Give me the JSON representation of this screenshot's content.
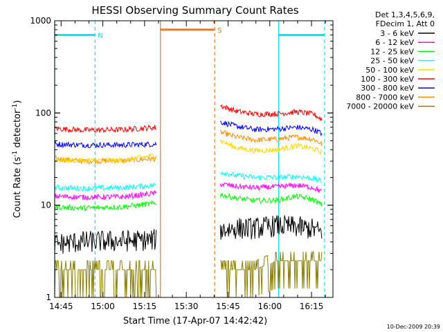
{
  "chart_data": {
    "type": "line",
    "title": "HESSI Observing Summary Count Rates",
    "xlabel": "Start Time (17-Apr-07 14:42:42)",
    "ylabel_prefix": "Count Rate (s",
    "ylabel_mid": " detector",
    "ylabel_suffix": ")",
    "ylabel_sup": "-1",
    "y_scale": "log",
    "ylim": [
      1,
      1000
    ],
    "xlim_minutes": [
      0,
      100
    ],
    "x_ticks": [
      {
        "label": "14:45",
        "value": 2.3
      },
      {
        "label": "15:00",
        "value": 17.3
      },
      {
        "label": "15:15",
        "value": 32.3
      },
      {
        "label": "15:30",
        "value": 47.3
      },
      {
        "label": "15:45",
        "value": 62.3
      },
      {
        "label": "16:00",
        "value": 77.3
      },
      {
        "label": "16:15",
        "value": 92.3
      }
    ],
    "y_ticks": [
      {
        "label": "1",
        "value": 1
      },
      {
        "label": "10",
        "value": 10
      },
      {
        "label": "100",
        "value": 100
      },
      {
        "label": "1000",
        "value": 1000
      }
    ],
    "legend_header": [
      "Det 1,3,4,5,6,9,",
      "FDecim 1, Att 0"
    ],
    "legend_position": "right",
    "series": [
      {
        "name": "3 - 6 keV",
        "color": "#000000",
        "seg1": [
          3.8,
          4.0,
          4.1,
          4.2
        ],
        "seg2": [
          5.4,
          5.6,
          5.6,
          6.0,
          5.8,
          5.5,
          5.0
        ]
      },
      {
        "name": "6 - 12 keV",
        "color": "#ff00ff",
        "seg1": [
          12.5,
          12.2,
          12.3,
          13.5
        ],
        "seg2": [
          17.0,
          16.0,
          15.5,
          15.8,
          16.5,
          15.5,
          14.0
        ]
      },
      {
        "name": "12 - 25 keV",
        "color": "#00ff00",
        "seg1": [
          9.5,
          9.3,
          9.6,
          10.5
        ],
        "seg2": [
          13.0,
          12.0,
          11.2,
          11.3,
          12.5,
          11.5,
          10.0
        ]
      },
      {
        "name": "25 - 50 keV",
        "color": "#00ffff",
        "seg1": [
          15.5,
          15.2,
          15.5,
          16.5
        ],
        "seg2": [
          23.0,
          21.0,
          20.0,
          20.0,
          20.5,
          19.5,
          18.0
        ]
      },
      {
        "name": "50 - 100 keV",
        "color": "#ffd700",
        "seg1": [
          31.0,
          30.5,
          30.5,
          35.0
        ],
        "seg2": [
          50.0,
          42.0,
          39.0,
          40.0,
          44.0,
          41.0,
          37.0
        ]
      },
      {
        "name": "100 - 300 keV",
        "color": "#ff0000",
        "seg1": [
          68.0,
          65.0,
          66.0,
          70.0
        ],
        "seg2": [
          120.0,
          105.0,
          97.0,
          98.0,
          103.0,
          97.0,
          85.0
        ]
      },
      {
        "name": "300 - 800 keV",
        "color": "#0000ff",
        "seg1": [
          46.0,
          45.0,
          45.0,
          46.0
        ],
        "seg2": [
          80.0,
          72.0,
          66.0,
          67.0,
          70.0,
          66.0,
          60.0
        ]
      },
      {
        "name": "800 - 7000 keV",
        "color": "#ff8c00",
        "seg1": [
          32.0,
          30.0,
          30.5,
          32.0
        ],
        "seg2": [
          62.0,
          55.0,
          51.0,
          52.0,
          55.0,
          52.0,
          46.0
        ]
      },
      {
        "name": "7000 - 20000 keV",
        "color": "#8b8000",
        "seg1": [
          2.0,
          2.0,
          2.0,
          2.0
        ],
        "seg2": [
          2.0,
          2.0,
          2.0,
          2.5,
          2.5,
          2.5,
          2.5
        ]
      }
    ],
    "seg1_x": [
      0,
      10,
      25,
      36.5
    ],
    "seg2_x": [
      59.5,
      65,
      72,
      80,
      87,
      93,
      96
    ],
    "intervals": [
      {
        "label": "N",
        "color": "#00e5ee",
        "start": 0,
        "end": 14.5,
        "level": 700
      },
      {
        "label": "",
        "color": "#00e5ee",
        "start": 80.5,
        "end": 97,
        "level": 700
      },
      {
        "label": "S",
        "color": "#ee7621",
        "start": 38,
        "end": 57.5,
        "level": 800
      }
    ],
    "footer_timestamp": "10-Dec-2009 20:39"
  }
}
